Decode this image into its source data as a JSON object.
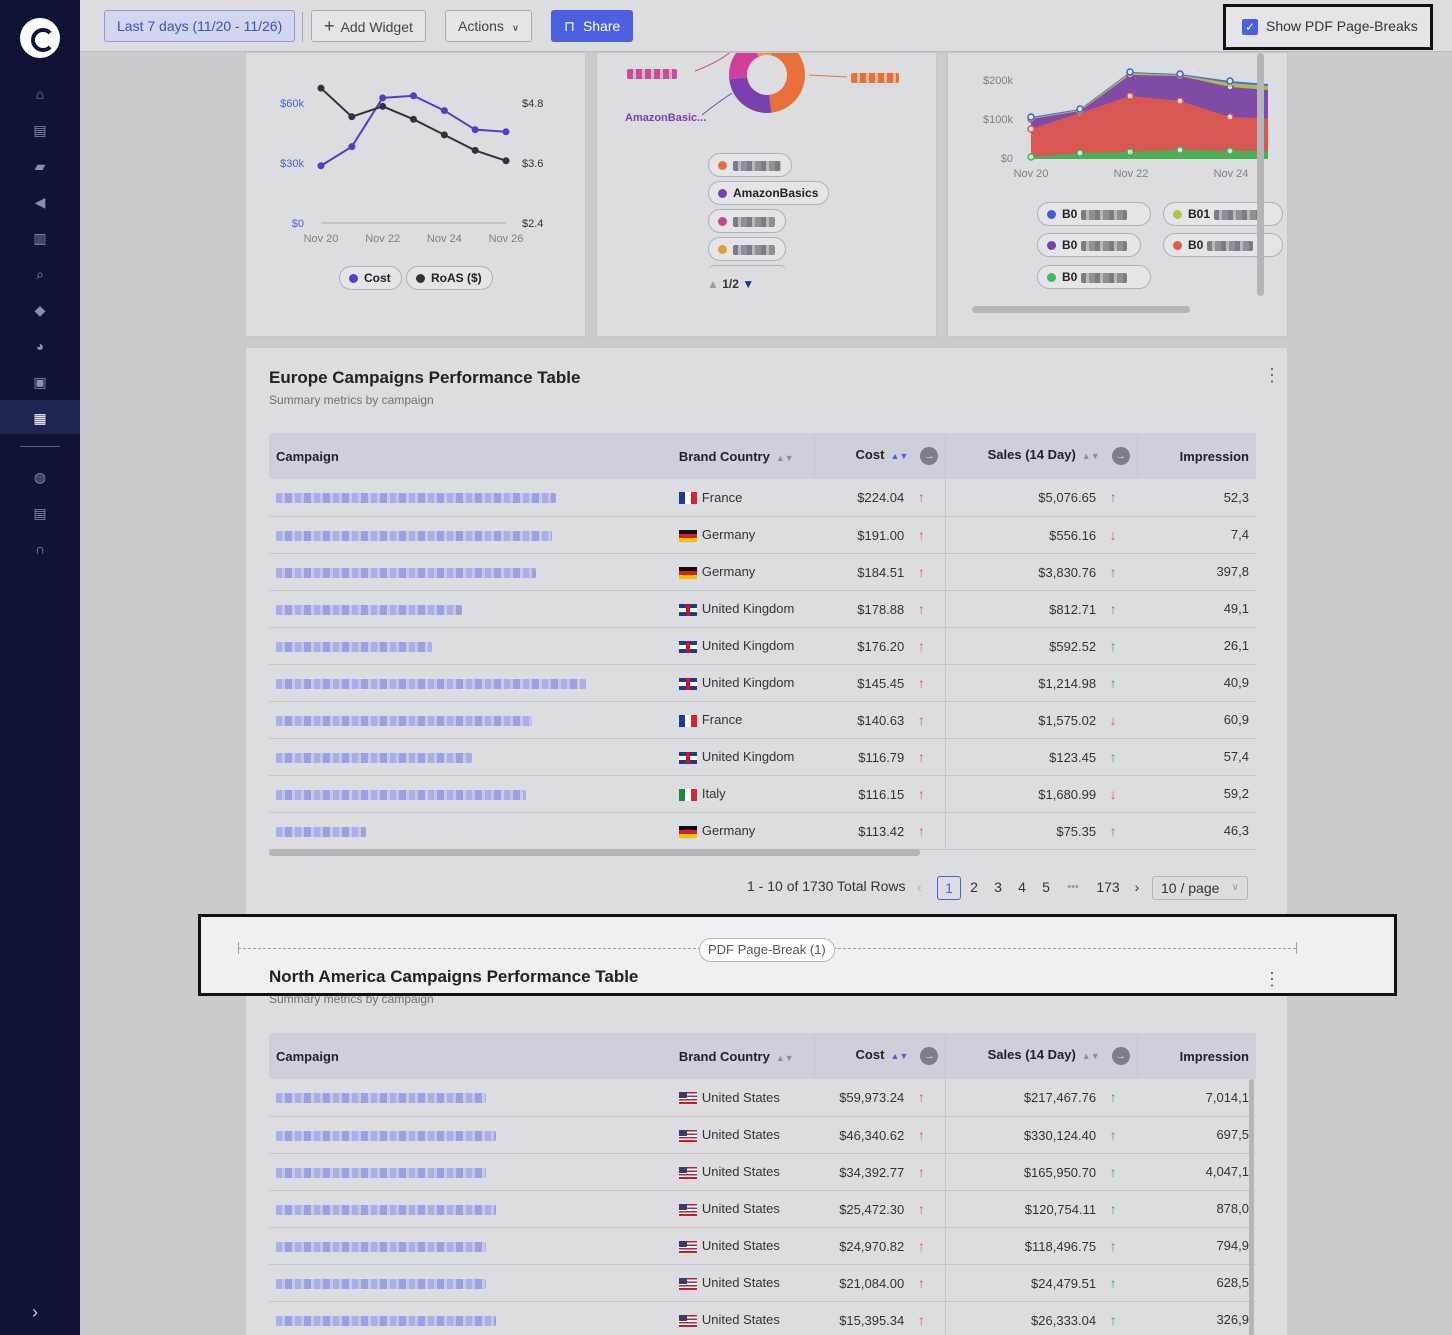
{
  "topbar": {
    "date_range": "Last 7 days (11/20 - 11/26)",
    "add_widget": "Add Widget",
    "actions": "Actions",
    "share": "Share",
    "pdf_toggle_label": "Show PDF Page-Breaks",
    "pdf_toggle_checked": true
  },
  "sidebar": {
    "icons": [
      "home-icon",
      "store-icon",
      "folder-icon",
      "megaphone-icon",
      "barcode-icon",
      "search-icon",
      "tag-icon",
      "pie-chart-icon",
      "report-icon",
      "dashboard-icon",
      "globe-icon",
      "document-icon",
      "headset-icon"
    ],
    "active": "dashboard-icon"
  },
  "chart_left": {
    "chart_data": {
      "type": "line",
      "x": [
        "Nov 20",
        "Nov 21",
        "Nov 22",
        "Nov 23",
        "Nov 24",
        "Nov 25",
        "Nov 26"
      ],
      "x_ticks": [
        "Nov 20",
        "Nov 22",
        "Nov 24",
        "Nov 26"
      ],
      "y_left_ticks": [
        "$0",
        "$30k",
        "$60k"
      ],
      "y_right_ticks": [
        "$2.4",
        "$3.6",
        "$4.8"
      ],
      "series": [
        {
          "name": "Cost",
          "color": "#5040c8",
          "axis": "left",
          "values": [
            27000,
            36000,
            59000,
            60000,
            53000,
            44000,
            43000
          ]
        },
        {
          "name": "RoAS ($)",
          "color": "#333333",
          "axis": "right",
          "values": [
            5.0,
            4.45,
            4.65,
            4.4,
            4.1,
            3.8,
            3.6
          ]
        }
      ],
      "ylim_left": [
        0,
        66000
      ],
      "ylim_right": [
        2.4,
        5.1
      ]
    },
    "legend": [
      "Cost",
      "RoAS ($)"
    ]
  },
  "chart_mid": {
    "chart_data": {
      "type": "pie",
      "visible_label": "AmazonBasic...",
      "slices": [
        {
          "color": "#e8713b",
          "value": 45
        },
        {
          "color": "#7b3fb0",
          "value": 25
        },
        {
          "color": "#d03f9a",
          "value": 20
        },
        {
          "color": "#e89a3b",
          "value": 10
        }
      ]
    },
    "legend_visible_text": "AmazonBasics",
    "legend_colors": [
      "#e8713b",
      "#7b3fb0",
      "#d03f9a",
      "#e89a3b"
    ],
    "pager": "1/2"
  },
  "chart_right": {
    "chart_data": {
      "type": "area",
      "x_ticks": [
        "Nov 20",
        "Nov 22",
        "Nov 24"
      ],
      "y_ticks": [
        "$0",
        "$100k",
        "$200k"
      ]
    },
    "legend_prefix": [
      "B0",
      "B01",
      "B0",
      "B0",
      "B0"
    ],
    "legend_colors": [
      "#3a62d6",
      "#b9c23a",
      "#7b3fb0",
      "#e05a4a",
      "#3aba55"
    ]
  },
  "europe": {
    "title": "Europe Campaigns Performance Table",
    "subtitle": "Summary metrics by campaign",
    "columns": [
      "Campaign",
      "Brand Country",
      "Cost",
      "Sales (14 Day)",
      "Impression"
    ],
    "rows": [
      {
        "country": "France",
        "flag": "fr",
        "cost": "$224.04",
        "cost_trend": "up",
        "sales": "$5,076.65",
        "sales_trend": "up",
        "impr": "52,3"
      },
      {
        "country": "Germany",
        "flag": "de",
        "cost": "$191.00",
        "cost_trend": "up",
        "sales": "$556.16",
        "sales_trend": "down",
        "impr": "7,4"
      },
      {
        "country": "Germany",
        "flag": "de",
        "cost": "$184.51",
        "cost_trend": "up",
        "sales": "$3,830.76",
        "sales_trend": "up",
        "impr": "397,8"
      },
      {
        "country": "United Kingdom",
        "flag": "uk",
        "cost": "$178.88",
        "cost_trend": "up",
        "sales": "$812.71",
        "sales_trend": "up",
        "impr": "49,1"
      },
      {
        "country": "United Kingdom",
        "flag": "uk",
        "cost": "$176.20",
        "cost_trend": "up",
        "sales": "$592.52",
        "sales_trend": "up",
        "impr": "26,1"
      },
      {
        "country": "United Kingdom",
        "flag": "uk",
        "cost": "$145.45",
        "cost_trend": "up",
        "sales": "$1,214.98",
        "sales_trend": "up",
        "impr": "40,9"
      },
      {
        "country": "France",
        "flag": "fr",
        "cost": "$140.63",
        "cost_trend": "up",
        "sales": "$1,575.02",
        "sales_trend": "down",
        "impr": "60,9"
      },
      {
        "country": "United Kingdom",
        "flag": "uk",
        "cost": "$116.79",
        "cost_trend": "up",
        "sales": "$123.45",
        "sales_trend": "up",
        "impr": "57,4"
      },
      {
        "country": "Italy",
        "flag": "it",
        "cost": "$116.15",
        "cost_trend": "up",
        "sales": "$1,680.99",
        "sales_trend": "down",
        "impr": "59,2"
      },
      {
        "country": "Germany",
        "flag": "de",
        "cost": "$113.42",
        "cost_trend": "up",
        "sales": "$75.35",
        "sales_trend": "up",
        "impr": "46,3"
      }
    ],
    "pagination": {
      "summary": "1 - 10 of 1730 Total Rows",
      "pages": [
        "1",
        "2",
        "3",
        "4",
        "5"
      ],
      "ellipsis": "•••",
      "last": "173",
      "current": "1",
      "page_size": "10 / page"
    }
  },
  "page_break": {
    "label": "PDF Page-Break (1)"
  },
  "north_america": {
    "title": "North America Campaigns Performance Table",
    "subtitle": "Summary metrics by campaign",
    "columns": [
      "Campaign",
      "Brand Country",
      "Cost",
      "Sales (14 Day)",
      "Impression"
    ],
    "rows": [
      {
        "country": "United States",
        "flag": "us",
        "cost": "$59,973.24",
        "cost_trend": "up",
        "sales": "$217,467.76",
        "sales_trend": "up",
        "impr": "7,014,1"
      },
      {
        "country": "United States",
        "flag": "us",
        "cost": "$46,340.62",
        "cost_trend": "up",
        "sales": "$330,124.40",
        "sales_trend": "up",
        "impr": "697,5"
      },
      {
        "country": "United States",
        "flag": "us",
        "cost": "$34,392.77",
        "cost_trend": "up",
        "sales": "$165,950.70",
        "sales_trend": "up",
        "impr": "4,047,1"
      },
      {
        "country": "United States",
        "flag": "us",
        "cost": "$25,472.30",
        "cost_trend": "up",
        "sales": "$120,754.11",
        "sales_trend": "up",
        "impr": "878,0"
      },
      {
        "country": "United States",
        "flag": "us",
        "cost": "$24,970.82",
        "cost_trend": "up",
        "sales": "$118,496.75",
        "sales_trend": "up",
        "impr": "794,9"
      },
      {
        "country": "United States",
        "flag": "us",
        "cost": "$21,084.00",
        "cost_trend": "up",
        "sales": "$24,479.51",
        "sales_trend": "up",
        "impr": "628,5"
      },
      {
        "country": "United States",
        "flag": "us",
        "cost": "$15,395.34",
        "cost_trend": "up",
        "sales": "$26,333.04",
        "sales_trend": "up",
        "impr": "326,9"
      }
    ]
  },
  "icons": {
    "expand": "chevron-right-icon",
    "add": "plus-icon",
    "actions": "chevron-down-icon",
    "share": "lock-icon",
    "more": "kebab-icon"
  }
}
